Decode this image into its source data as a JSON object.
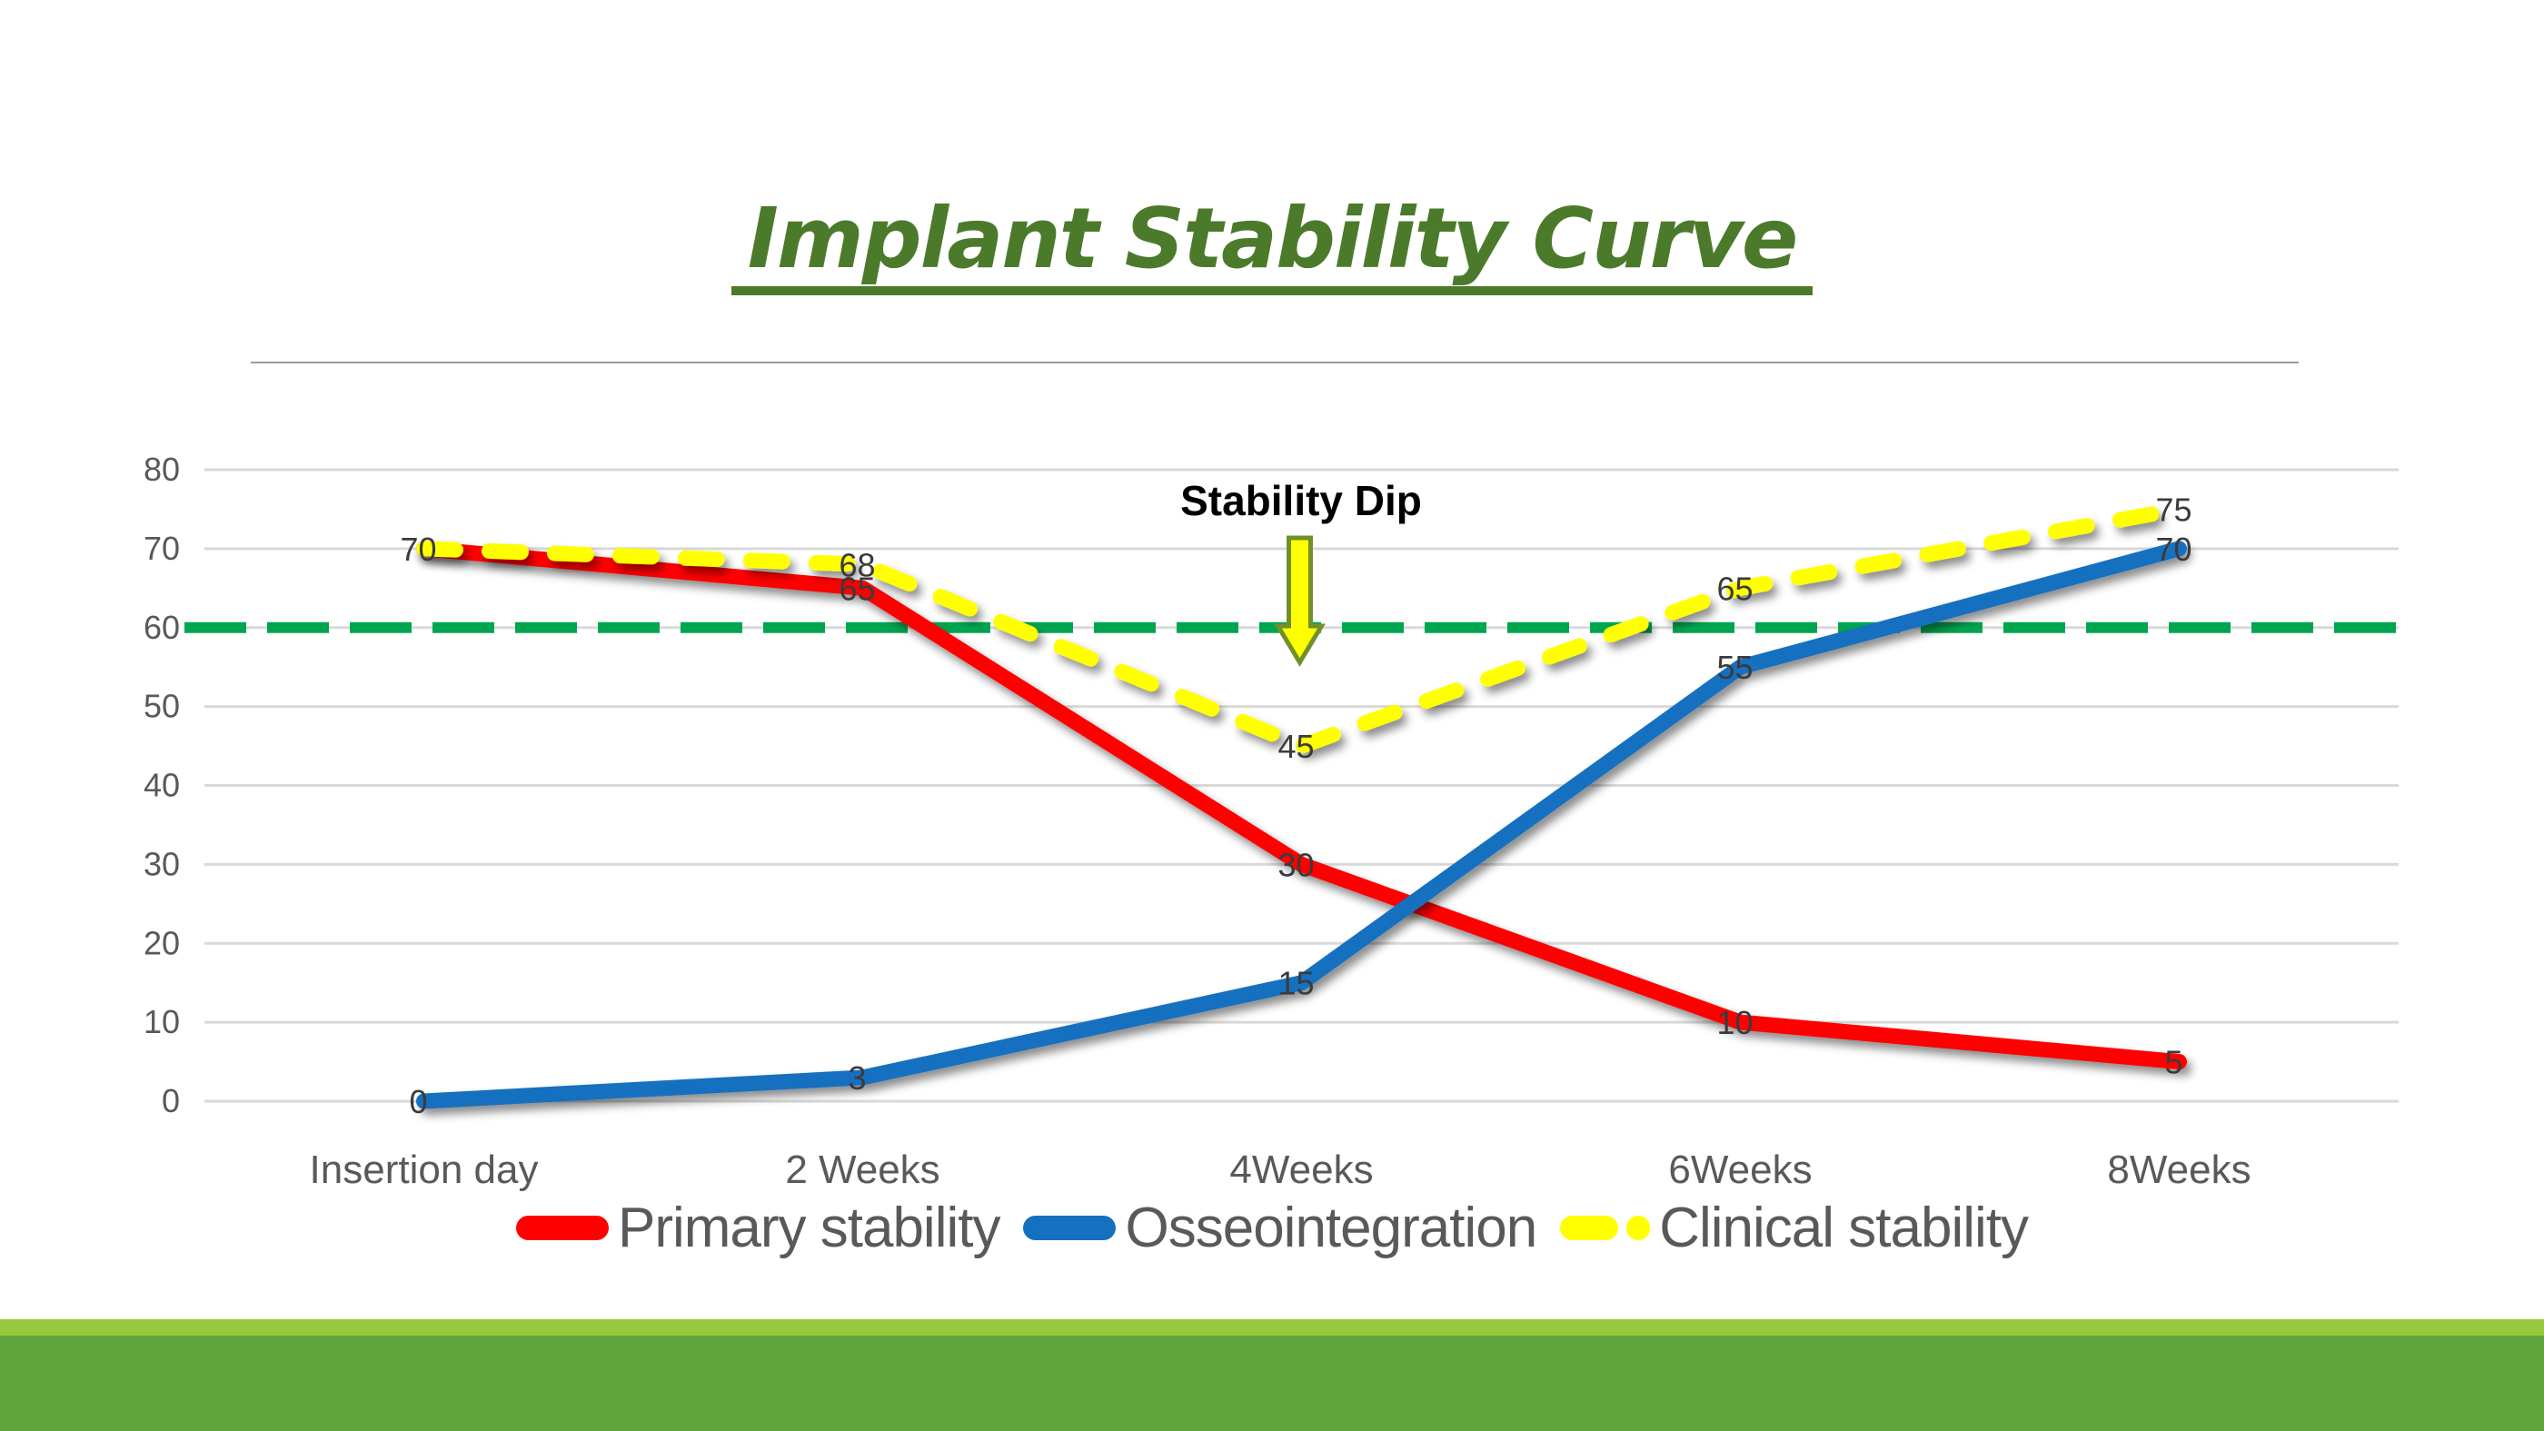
{
  "title": {
    "text": "Implant Stability Curve",
    "color": "#4C7A2B"
  },
  "annotation": {
    "text": "Stability Dip",
    "arrow_fill": "#FFFF00",
    "arrow_stroke": "#70902A"
  },
  "legend": {
    "items": [
      {
        "label": "Primary stability",
        "color": "#FF0000",
        "marker": "solid"
      },
      {
        "label": "Osseointegration",
        "color": "#1470C0",
        "marker": "solid"
      },
      {
        "label": "Clinical stability",
        "color": "#FFFF00",
        "marker": "dashed"
      }
    ]
  },
  "footer": {
    "bar_light": "#96C93D",
    "bar_dark": "#5FA33B"
  },
  "chart_data": {
    "type": "line",
    "title": "Implant Stability Curve",
    "categories": [
      "Insertion day",
      "2 Weeks",
      "4Weeks",
      "6Weeks",
      "8Weeks"
    ],
    "series": [
      {
        "name": "Primary stability",
        "color": "#FF0000",
        "dash": null,
        "values": [
          70,
          65,
          30,
          10,
          5
        ]
      },
      {
        "name": "Osseointegration",
        "color": "#1470C0",
        "dash": null,
        "values": [
          0,
          3,
          15,
          55,
          70
        ]
      },
      {
        "name": "Clinical stability",
        "color": "#FFFF00",
        "dash": "35 37",
        "values": [
          70,
          68,
          45,
          65,
          75
        ]
      }
    ],
    "point_labels": true,
    "point_labels_skip": [
      [
        2,
        0
      ]
    ],
    "reference_line": {
      "value": 60,
      "color": "#00A550",
      "dash": "68 23"
    },
    "annotation": {
      "text": "Stability Dip",
      "x_category": 2,
      "arrow_from_value": 71,
      "arrow_to_value": 56
    },
    "xlabel": "",
    "ylabel": "",
    "ylim": [
      0,
      80
    ],
    "ytick_step": 10,
    "grid": true,
    "legend_position": "bottom",
    "colors": {
      "gridline": "#D9D9D9",
      "tick_text": "#595959",
      "axis_text": "#595959",
      "data_label": "#3B3B3B"
    }
  }
}
